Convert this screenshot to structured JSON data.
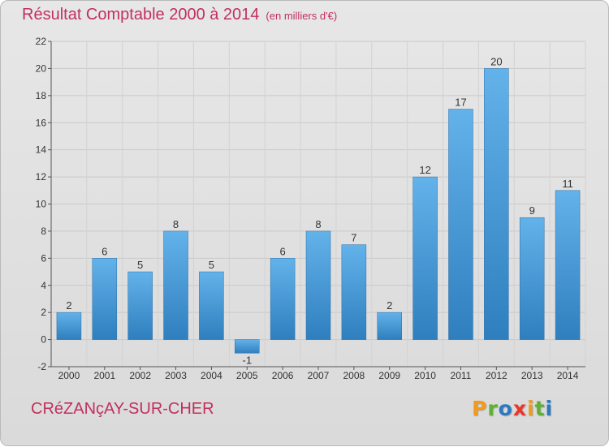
{
  "title": "Résultat Comptable 2000 à 2014",
  "unit_note": "(en milliers d'€)",
  "city": "CRéZANçAY-SUR-CHER",
  "logo": {
    "text": "Proxiti",
    "colors": [
      "#f29a1b",
      "#5fb133",
      "#2c79c2",
      "#e8362b",
      "#f29a1b",
      "#5fb133",
      "#2c79c2"
    ]
  },
  "colors": {
    "bar_top": "#63b2ea",
    "bar_bottom": "#2f7fbf",
    "title": "#c1305e"
  },
  "chart_data": {
    "type": "bar",
    "categories": [
      "2000",
      "2001",
      "2002",
      "2003",
      "2004",
      "2005",
      "2006",
      "2007",
      "2008",
      "2009",
      "2010",
      "2011",
      "2012",
      "2013",
      "2014"
    ],
    "values": [
      2,
      6,
      5,
      8,
      5,
      -1,
      6,
      8,
      7,
      2,
      12,
      17,
      20,
      9,
      11
    ],
    "ylim": [
      -2,
      22
    ],
    "yticks": [
      -2,
      0,
      2,
      4,
      6,
      8,
      10,
      12,
      14,
      16,
      18,
      20,
      22
    ],
    "grid": true,
    "data_labels": true
  }
}
